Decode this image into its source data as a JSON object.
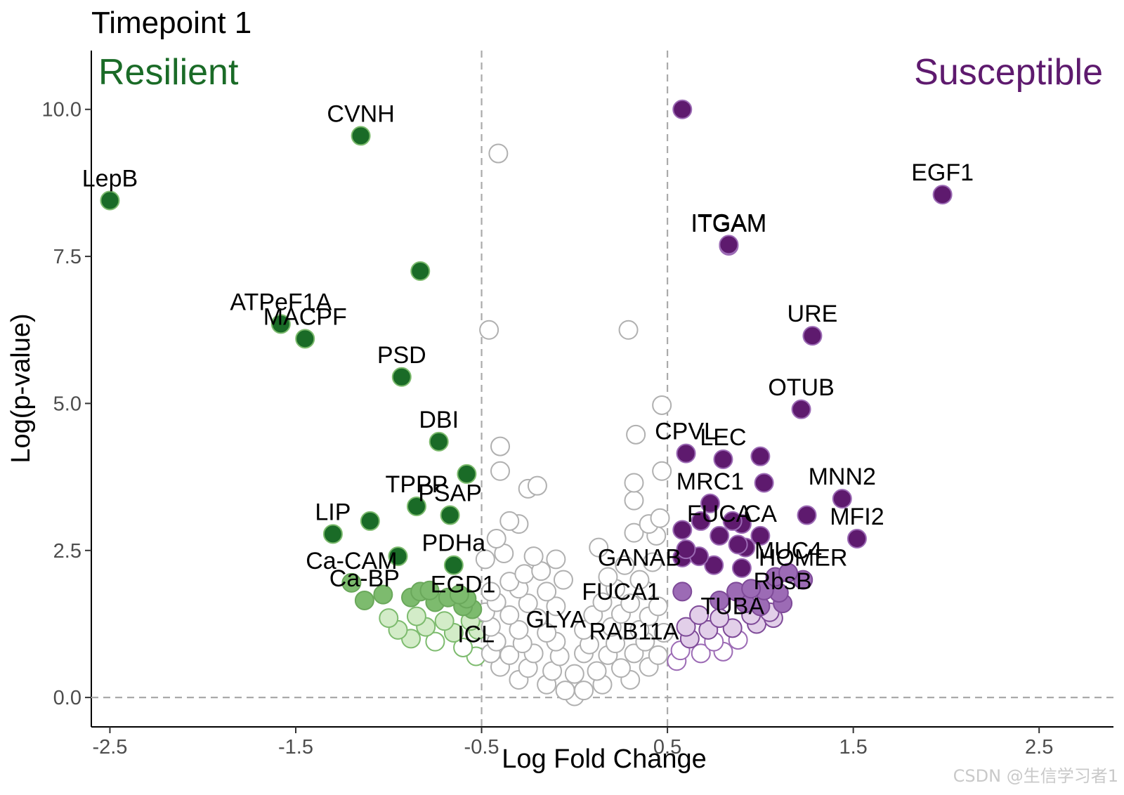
{
  "chart_data": {
    "type": "scatter",
    "title": "Timepoint 1",
    "xlabel": "Log Fold Change",
    "ylabel": "Log(p-value)",
    "xlim": [
      -2.6,
      2.9
    ],
    "ylim": [
      -0.5,
      11.0
    ],
    "xticks": [
      -2.5,
      -1.5,
      -0.5,
      0.5,
      1.5,
      2.5
    ],
    "xtick_labels": [
      "-2.5",
      "-1.5",
      "-0.5",
      "0.5",
      "1.5",
      "2.5"
    ],
    "yticks": [
      0.0,
      2.5,
      5.0,
      7.5,
      10.0
    ],
    "ytick_labels": [
      "0.0",
      "2.5",
      "5.0",
      "7.5",
      "10.0"
    ],
    "vlines": [
      -0.5,
      0.5
    ],
    "hlines": [
      0
    ],
    "grid": false,
    "corner_labels": {
      "left": {
        "text": "Resilient",
        "color": "#1a6b27"
      },
      "right": {
        "text": "Susceptible",
        "color": "#5e1a6e"
      }
    },
    "colors": {
      "resilient_strong": "#1a6b27",
      "resilient_mid": "#7dbb6e",
      "resilient_light": "#d3ecc8",
      "susceptible_strong": "#5e1a6e",
      "susceptible_mid": "#9c6bb5",
      "susceptible_light": "#e2cfe9",
      "neutral": "#b0b0b0",
      "reference_line": "#aaaaaa"
    },
    "points": [
      {
        "x": -2.5,
        "y": 8.45,
        "label": "LepB"
      },
      {
        "x": -1.15,
        "y": 9.55,
        "label": "CVNH"
      },
      {
        "x": -0.83,
        "y": 7.25
      },
      {
        "x": -1.58,
        "y": 6.35,
        "label": "ATPeF1A"
      },
      {
        "x": -1.45,
        "y": 6.1,
        "label": "MACPF"
      },
      {
        "x": -0.93,
        "y": 5.45,
        "label": "PSD"
      },
      {
        "x": -0.73,
        "y": 4.35,
        "label": "DBI"
      },
      {
        "x": -0.58,
        "y": 3.8
      },
      {
        "x": -0.85,
        "y": 3.25,
        "label": "TPPP"
      },
      {
        "x": -0.67,
        "y": 3.1,
        "label": "PSAP"
      },
      {
        "x": -1.1,
        "y": 3.0
      },
      {
        "x": -1.3,
        "y": 2.78,
        "label": "LIP"
      },
      {
        "x": -0.95,
        "y": 2.4
      },
      {
        "x": -0.65,
        "y": 2.25,
        "label": "PDHa"
      },
      {
        "x": -1.2,
        "y": 1.95,
        "label": "Ca-CAM"
      },
      {
        "x": -1.03,
        "y": 1.75
      },
      {
        "x": -0.83,
        "y": 1.8
      },
      {
        "x": -0.78,
        "y": 1.82
      },
      {
        "x": -0.68,
        "y": 1.7
      },
      {
        "x": -0.62,
        "y": 1.75
      },
      {
        "x": -0.58,
        "y": 1.68
      },
      {
        "x": -1.13,
        "y": 1.65,
        "label": "Ca-BP"
      },
      {
        "x": -0.88,
        "y": 1.7
      },
      {
        "x": -0.75,
        "y": 1.62
      },
      {
        "x": -0.6,
        "y": 1.55,
        "label": "EGD1"
      },
      {
        "x": -0.55,
        "y": 1.5
      },
      {
        "x": -1.0,
        "y": 1.35
      },
      {
        "x": -0.85,
        "y": 1.38
      },
      {
        "x": -0.7,
        "y": 1.3
      },
      {
        "x": -0.56,
        "y": 1.3
      },
      {
        "x": -0.95,
        "y": 1.15
      },
      {
        "x": -0.8,
        "y": 1.2
      },
      {
        "x": -0.65,
        "y": 1.1
      },
      {
        "x": -0.52,
        "y": 1.15
      },
      {
        "x": -0.88,
        "y": 1.0
      },
      {
        "x": -0.75,
        "y": 0.95
      },
      {
        "x": -0.6,
        "y": 0.85
      },
      {
        "x": -0.53,
        "y": 0.7,
        "label": "ICL"
      },
      {
        "x": -0.41,
        "y": 9.25
      },
      {
        "x": -0.46,
        "y": 6.25
      },
      {
        "x": 0.29,
        "y": 6.25
      },
      {
        "x": 0.47,
        "y": 4.97
      },
      {
        "x": 0.33,
        "y": 4.47
      },
      {
        "x": -0.4,
        "y": 4.27
      },
      {
        "x": -0.4,
        "y": 3.85
      },
      {
        "x": 0.47,
        "y": 3.85
      },
      {
        "x": 0.32,
        "y": 3.65
      },
      {
        "x": 0.32,
        "y": 3.35
      },
      {
        "x": -0.2,
        "y": 3.6
      },
      {
        "x": -0.25,
        "y": 3.55
      },
      {
        "x": -0.35,
        "y": 3.0
      },
      {
        "x": -0.3,
        "y": 2.95
      },
      {
        "x": 0.4,
        "y": 2.95
      },
      {
        "x": 0.46,
        "y": 3.05
      },
      {
        "x": 0.32,
        "y": 2.8
      },
      {
        "x": 0.44,
        "y": 2.75
      },
      {
        "x": -0.42,
        "y": 2.7
      },
      {
        "x": 0.13,
        "y": 2.55
      },
      {
        "x": -0.48,
        "y": 2.35
      },
      {
        "x": -0.38,
        "y": 2.45
      },
      {
        "x": -0.22,
        "y": 2.4
      },
      {
        "x": -0.1,
        "y": 2.35
      },
      {
        "x": 0.27,
        "y": 2.25
      },
      {
        "x": 0.42,
        "y": 2.3
      },
      {
        "x": -0.27,
        "y": 2.1
      },
      {
        "x": -0.18,
        "y": 2.15
      },
      {
        "x": -0.35,
        "y": 1.97
      },
      {
        "x": -0.06,
        "y": 2.0
      },
      {
        "x": 0.18,
        "y": 2.05
      },
      {
        "x": 0.35,
        "y": 2.0,
        "label": "GANAB"
      },
      {
        "x": -0.45,
        "y": 1.8
      },
      {
        "x": -0.3,
        "y": 1.85
      },
      {
        "x": -0.15,
        "y": 1.8
      },
      {
        "x": 0.22,
        "y": 1.85
      },
      {
        "x": 0.38,
        "y": 1.82
      },
      {
        "x": -0.42,
        "y": 1.62
      },
      {
        "x": -0.25,
        "y": 1.6
      },
      {
        "x": -0.1,
        "y": 1.55
      },
      {
        "x": 0.15,
        "y": 1.62
      },
      {
        "x": 0.3,
        "y": 1.6
      },
      {
        "x": 0.45,
        "y": 1.55
      },
      {
        "x": -0.48,
        "y": 1.45
      },
      {
        "x": -0.35,
        "y": 1.4
      },
      {
        "x": -0.2,
        "y": 1.35
      },
      {
        "x": 0.1,
        "y": 1.4
      },
      {
        "x": 0.25,
        "y": 1.42,
        "label": "FUCA1"
      },
      {
        "x": 0.4,
        "y": 1.38
      },
      {
        "x": -0.45,
        "y": 1.2
      },
      {
        "x": -0.3,
        "y": 1.15
      },
      {
        "x": -0.15,
        "y": 1.1
      },
      {
        "x": 0.05,
        "y": 1.15
      },
      {
        "x": 0.2,
        "y": 1.2
      },
      {
        "x": 0.35,
        "y": 1.15
      },
      {
        "x": 0.48,
        "y": 1.1
      },
      {
        "x": -0.42,
        "y": 0.95
      },
      {
        "x": -0.28,
        "y": 0.92
      },
      {
        "x": -0.1,
        "y": 0.95,
        "label": "GLYA"
      },
      {
        "x": 0.08,
        "y": 0.9
      },
      {
        "x": 0.22,
        "y": 0.92
      },
      {
        "x": 0.38,
        "y": 0.95
      },
      {
        "x": -0.45,
        "y": 0.75
      },
      {
        "x": -0.35,
        "y": 0.72
      },
      {
        "x": -0.22,
        "y": 0.75
      },
      {
        "x": -0.08,
        "y": 0.7
      },
      {
        "x": 0.05,
        "y": 0.75
      },
      {
        "x": 0.18,
        "y": 0.72
      },
      {
        "x": 0.32,
        "y": 0.75,
        "label": "RAB11A"
      },
      {
        "x": 0.45,
        "y": 0.72
      },
      {
        "x": -0.4,
        "y": 0.52
      },
      {
        "x": -0.25,
        "y": 0.5
      },
      {
        "x": -0.12,
        "y": 0.45
      },
      {
        "x": 0.0,
        "y": 0.4
      },
      {
        "x": 0.12,
        "y": 0.45
      },
      {
        "x": 0.25,
        "y": 0.5
      },
      {
        "x": 0.4,
        "y": 0.52
      },
      {
        "x": -0.3,
        "y": 0.3
      },
      {
        "x": -0.15,
        "y": 0.22
      },
      {
        "x": -0.05,
        "y": 0.12
      },
      {
        "x": 0.05,
        "y": 0.12
      },
      {
        "x": 0.15,
        "y": 0.22
      },
      {
        "x": 0.3,
        "y": 0.3
      },
      {
        "x": 0.0,
        "y": 0.02
      },
      {
        "x": 0.58,
        "y": 10.0
      },
      {
        "x": 1.98,
        "y": 8.55,
        "label": "EGF1"
      },
      {
        "x": 0.83,
        "y": 7.7,
        "label": "ITGAM"
      },
      {
        "x": 0.83,
        "y": 7.68,
        "label": "ITGAM"
      },
      {
        "x": 1.28,
        "y": 6.15,
        "label": "URE"
      },
      {
        "x": 1.22,
        "y": 4.9,
        "label": "OTUB"
      },
      {
        "x": 0.6,
        "y": 4.15,
        "label": "CPVL"
      },
      {
        "x": 0.8,
        "y": 4.05,
        "label": "LEC"
      },
      {
        "x": 1.0,
        "y": 4.1
      },
      {
        "x": 1.02,
        "y": 3.65
      },
      {
        "x": 1.44,
        "y": 3.38,
        "label": "MNN2"
      },
      {
        "x": 0.73,
        "y": 3.3,
        "label": "MRC1"
      },
      {
        "x": 1.25,
        "y": 3.1
      },
      {
        "x": 0.68,
        "y": 3.0
      },
      {
        "x": 0.85,
        "y": 3.0
      },
      {
        "x": 0.9,
        "y": 2.95
      },
      {
        "x": 0.58,
        "y": 2.85
      },
      {
        "x": 0.78,
        "y": 2.75,
        "label": "FUCA"
      },
      {
        "x": 1.0,
        "y": 2.75,
        "label": "CA"
      },
      {
        "x": 1.52,
        "y": 2.7,
        "label": "MFI2"
      },
      {
        "x": 0.88,
        "y": 2.6
      },
      {
        "x": 0.92,
        "y": 2.55
      },
      {
        "x": 0.6,
        "y": 2.52
      },
      {
        "x": 0.58,
        "y": 2.38
      },
      {
        "x": 0.67,
        "y": 2.4
      },
      {
        "x": 0.75,
        "y": 2.25
      },
      {
        "x": 0.9,
        "y": 2.2
      },
      {
        "x": 1.15,
        "y": 2.12,
        "label": "MUC4"
      },
      {
        "x": 1.08,
        "y": 2.05
      },
      {
        "x": 1.23,
        "y": 2.0,
        "label": "HOMER"
      },
      {
        "x": 0.58,
        "y": 1.8
      },
      {
        "x": 0.87,
        "y": 1.8
      },
      {
        "x": 0.95,
        "y": 1.85
      },
      {
        "x": 1.02,
        "y": 1.82
      },
      {
        "x": 1.1,
        "y": 1.78
      },
      {
        "x": 0.78,
        "y": 1.65
      },
      {
        "x": 0.92,
        "y": 1.6
      },
      {
        "x": 1.0,
        "y": 1.55
      },
      {
        "x": 1.12,
        "y": 1.6,
        "label": "RbsB"
      },
      {
        "x": 1.05,
        "y": 1.45
      },
      {
        "x": 0.67,
        "y": 1.4
      },
      {
        "x": 0.78,
        "y": 1.35
      },
      {
        "x": 0.95,
        "y": 1.4
      },
      {
        "x": 1.07,
        "y": 1.35
      },
      {
        "x": 0.6,
        "y": 1.2
      },
      {
        "x": 0.72,
        "y": 1.15
      },
      {
        "x": 0.85,
        "y": 1.18,
        "label": "TUBA"
      },
      {
        "x": 0.98,
        "y": 1.25
      },
      {
        "x": 0.62,
        "y": 1.0
      },
      {
        "x": 0.75,
        "y": 0.95
      },
      {
        "x": 0.88,
        "y": 0.98
      },
      {
        "x": 0.57,
        "y": 0.8
      },
      {
        "x": 0.68,
        "y": 0.75
      },
      {
        "x": 0.8,
        "y": 0.78
      },
      {
        "x": 0.55,
        "y": 0.62
      }
    ]
  },
  "watermark": "CSDN @生信学习者1"
}
